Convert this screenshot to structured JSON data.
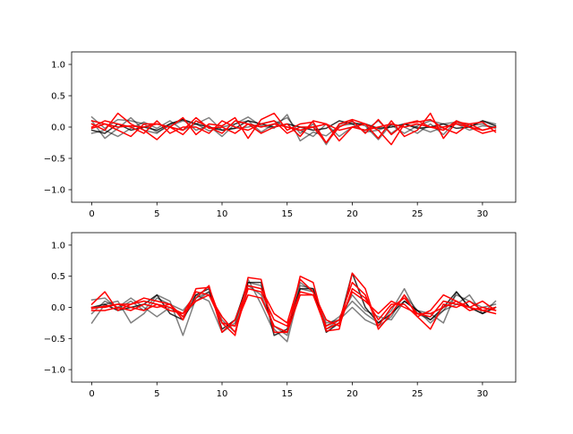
{
  "chart_data": [
    {
      "type": "line",
      "x": [
        0,
        1,
        2,
        3,
        4,
        5,
        6,
        7,
        8,
        9,
        10,
        11,
        12,
        13,
        14,
        15,
        16,
        17,
        18,
        19,
        20,
        21,
        22,
        23,
        24,
        25,
        26,
        27,
        28,
        29,
        30,
        31
      ],
      "xlim": [
        -1.55,
        32.55
      ],
      "ylim": [
        -1.2,
        1.2
      ],
      "xticks": [
        "0",
        "5",
        "10",
        "15",
        "20",
        "25",
        "30"
      ],
      "xtick_values": [
        0,
        5,
        10,
        15,
        20,
        25,
        30
      ],
      "yticks": [
        "−1.0",
        "−0.5",
        "0.0",
        "0.5",
        "1.0"
      ],
      "ytick_values": [
        -1.0,
        -0.5,
        0.0,
        0.5,
        1.0
      ],
      "grid": false,
      "series": [
        {
          "color": "#000000",
          "alpha": 0.5,
          "values": [
            0.16,
            -0.02,
            0.12,
            0.1,
            0.05,
            -0.08,
            0.02,
            0.1,
            0.05,
            -0.06,
            0.0,
            0.05,
            0.16,
            0.02,
            -0.02,
            0.2,
            -0.22,
            -0.08,
            -0.14,
            0.02,
            0.05,
            -0.08,
            -0.05,
            0.03,
            -0.1,
            0.02,
            0.1,
            0.05,
            0.08,
            0.0,
            0.1,
            0.05
          ]
        },
        {
          "color": "#000000",
          "alpha": 0.5,
          "values": [
            0.1,
            -0.18,
            -0.02,
            0.15,
            -0.05,
            -0.1,
            0.05,
            0.12,
            -0.05,
            0.02,
            -0.15,
            0.05,
            0.1,
            -0.08,
            0.05,
            0.15,
            -0.1,
            0.05,
            -0.28,
            0.05,
            0.08,
            0.02,
            -0.2,
            0.05,
            0.0,
            -0.1,
            0.05,
            -0.12,
            0.1,
            0.02,
            0.05,
            -0.02
          ]
        },
        {
          "color": "#000000",
          "alpha": 0.5,
          "values": [
            -0.1,
            -0.05,
            -0.15,
            -0.02,
            0.08,
            -0.02,
            0.1,
            -0.05,
            0.05,
            0.15,
            -0.05,
            -0.02,
            0.0,
            0.05,
            0.1,
            0.0,
            -0.05,
            -0.15,
            0.05,
            -0.15,
            0.0,
            -0.05,
            0.1,
            -0.1,
            0.05,
            0.0,
            -0.08,
            0.0,
            0.05,
            -0.05,
            0.02,
            0.0
          ]
        },
        {
          "color": "#000000",
          "alpha": 0.8,
          "values": [
            -0.05,
            -0.1,
            0.05,
            -0.05,
            0.0,
            -0.05,
            0.05,
            0.12,
            0.05,
            0.0,
            -0.05,
            -0.02,
            0.1,
            0.05,
            0.0,
            0.05,
            0.0,
            -0.05,
            -0.02,
            0.1,
            0.05,
            0.05,
            -0.02,
            0.0,
            0.05,
            -0.02,
            0.0,
            0.05,
            -0.02,
            0.0,
            0.1,
            0.02
          ]
        },
        {
          "color": "#ff0000",
          "alpha": 1,
          "values": [
            0.05,
            -0.05,
            0.22,
            0.05,
            -0.05,
            -0.2,
            0.0,
            0.15,
            -0.12,
            0.05,
            0.02,
            0.15,
            -0.18,
            0.12,
            0.22,
            -0.05,
            0.05,
            0.08,
            -0.25,
            0.05,
            0.12,
            0.05,
            -0.18,
            0.1,
            -0.15,
            -0.05,
            0.22,
            -0.18,
            0.08,
            0.05,
            -0.05,
            0.0
          ]
        },
        {
          "color": "#ff0000",
          "alpha": 1,
          "values": [
            0.0,
            0.1,
            0.05,
            0.0,
            -0.1,
            0.1,
            -0.1,
            0.0,
            0.0,
            -0.1,
            0.1,
            0.0,
            -0.05,
            0.05,
            0.1,
            -0.1,
            0.0,
            0.0,
            -0.25,
            0.0,
            0.1,
            -0.1,
            0.12,
            -0.12,
            0.05,
            0.1,
            0.0,
            -0.05,
            0.1,
            0.0,
            -0.1,
            -0.05
          ]
        },
        {
          "color": "#ff0000",
          "alpha": 1,
          "values": [
            0.1,
            0.05,
            -0.05,
            -0.15,
            0.05,
            0.05,
            0.0,
            -0.12,
            0.1,
            0.0,
            -0.1,
            0.1,
            0.05,
            -0.1,
            0.0,
            0.05,
            -0.15,
            0.1,
            0.05,
            -0.05,
            0.0,
            0.05,
            -0.05,
            -0.28,
            0.05,
            0.08,
            0.12,
            -0.02,
            -0.1,
            0.05,
            0.08,
            -0.08
          ]
        },
        {
          "color": "#ff0000",
          "alpha": 1,
          "values": [
            -0.02,
            0.05,
            0.0,
            0.02,
            0.0,
            0.05,
            0.0,
            -0.05,
            0.15,
            -0.02,
            0.0,
            -0.1,
            0.05,
            0.0,
            0.05,
            0.0,
            -0.05,
            0.0,
            0.05,
            -0.22,
            0.0,
            -0.05,
            0.0,
            0.05,
            0.0,
            0.05,
            0.0,
            0.0,
            0.05,
            0.0,
            -0.05,
            0.0
          ]
        }
      ]
    },
    {
      "type": "line",
      "x": [
        0,
        1,
        2,
        3,
        4,
        5,
        6,
        7,
        8,
        9,
        10,
        11,
        12,
        13,
        14,
        15,
        16,
        17,
        18,
        19,
        20,
        21,
        22,
        23,
        24,
        25,
        26,
        27,
        28,
        29,
        30,
        31
      ],
      "xlim": [
        -1.55,
        32.55
      ],
      "ylim": [
        -1.2,
        1.2
      ],
      "xticks": [
        "0",
        "5",
        "10",
        "15",
        "20",
        "25",
        "30"
      ],
      "xtick_values": [
        0,
        5,
        10,
        15,
        20,
        25,
        30
      ],
      "yticks": [
        "−1.0",
        "−0.5",
        "0.0",
        "0.5",
        "1.0"
      ],
      "ytick_values": [
        -1.0,
        -0.5,
        0.0,
        0.5,
        1.0
      ],
      "grid": false,
      "series": [
        {
          "color": "#000000",
          "alpha": 0.5,
          "values": [
            0.12,
            0.15,
            -0.02,
            0.1,
            -0.05,
            0.2,
            0.1,
            -0.45,
            0.15,
            0.25,
            -0.25,
            -0.3,
            0.4,
            0.35,
            -0.35,
            -0.55,
            0.3,
            0.25,
            -0.3,
            -0.15,
            0.1,
            -0.1,
            -0.25,
            -0.05,
            0.3,
            -0.1,
            -0.2,
            -0.05,
            0.2,
            0.1,
            0.0,
            0.05
          ]
        },
        {
          "color": "#000000",
          "alpha": 0.5,
          "values": [
            -0.25,
            0.05,
            0.1,
            -0.25,
            -0.1,
            0.15,
            0.05,
            -0.05,
            0.2,
            0.1,
            -0.4,
            -0.25,
            0.45,
            0.05,
            -0.4,
            -0.4,
            0.4,
            0.25,
            -0.25,
            -0.2,
            0.0,
            -0.2,
            -0.3,
            -0.15,
            0.2,
            -0.05,
            -0.1,
            -0.25,
            0.25,
            0.0,
            -0.1,
            0.1
          ]
        },
        {
          "color": "#000000",
          "alpha": 0.5,
          "values": [
            -0.1,
            0.1,
            0.0,
            0.15,
            0.0,
            -0.15,
            0.0,
            -0.15,
            0.1,
            0.25,
            -0.2,
            -0.4,
            0.35,
            0.2,
            -0.3,
            -0.45,
            0.35,
            0.3,
            -0.35,
            -0.2,
            0.2,
            -0.05,
            -0.15,
            -0.2,
            0.1,
            -0.05,
            -0.25,
            -0.05,
            0.05,
            0.2,
            -0.1,
            0.0
          ]
        },
        {
          "color": "#000000",
          "alpha": 0.8,
          "values": [
            0.0,
            0.05,
            -0.05,
            0.0,
            0.05,
            0.2,
            -0.1,
            -0.2,
            0.2,
            0.3,
            -0.35,
            -0.2,
            0.4,
            0.4,
            -0.45,
            -0.35,
            0.3,
            0.3,
            -0.4,
            -0.25,
            0.55,
            0.0,
            -0.25,
            -0.1,
            0.1,
            -0.05,
            -0.2,
            0.0,
            0.25,
            0.0,
            -0.1,
            0.0
          ]
        },
        {
          "color": "#ff0000",
          "alpha": 1,
          "values": [
            0.05,
            0.25,
            -0.05,
            0.05,
            0.15,
            0.1,
            0.05,
            -0.2,
            0.3,
            0.32,
            -0.25,
            -0.45,
            0.48,
            0.45,
            -0.4,
            -0.4,
            0.5,
            0.4,
            -0.38,
            -0.35,
            0.55,
            0.3,
            -0.35,
            -0.1,
            0.2,
            -0.15,
            -0.05,
            0.2,
            0.1,
            0.0,
            0.1,
            -0.05
          ]
        },
        {
          "color": "#ff0000",
          "alpha": 1,
          "values": [
            0.0,
            0.0,
            0.05,
            0.05,
            0.1,
            0.05,
            -0.05,
            -0.1,
            0.25,
            0.2,
            -0.15,
            -0.4,
            0.3,
            0.25,
            -0.2,
            -0.3,
            0.25,
            0.2,
            -0.3,
            -0.2,
            0.4,
            0.2,
            -0.3,
            0.0,
            0.15,
            -0.1,
            -0.15,
            0.1,
            0.05,
            0.0,
            -0.05,
            0.0
          ]
        },
        {
          "color": "#ff0000",
          "alpha": 1,
          "values": [
            -0.05,
            -0.05,
            0.0,
            -0.05,
            0.05,
            0.0,
            0.05,
            -0.15,
            0.15,
            0.35,
            -0.4,
            -0.2,
            0.35,
            0.3,
            -0.1,
            -0.25,
            0.45,
            0.25,
            -0.2,
            -0.3,
            0.3,
            0.15,
            -0.2,
            0.05,
            0.05,
            -0.15,
            -0.35,
            0.05,
            0.0,
            0.1,
            -0.05,
            -0.1
          ]
        },
        {
          "color": "#ff0000",
          "alpha": 1,
          "values": [
            -0.02,
            0.02,
            0.05,
            0.0,
            -0.05,
            0.05,
            0.0,
            -0.1,
            0.1,
            0.2,
            -0.25,
            -0.3,
            0.2,
            0.15,
            -0.3,
            -0.4,
            0.2,
            0.2,
            -0.35,
            -0.25,
            0.25,
            0.1,
            -0.1,
            0.1,
            0.0,
            -0.1,
            -0.1,
            0.0,
            0.1,
            -0.05,
            0.0,
            -0.05
          ]
        }
      ]
    }
  ]
}
